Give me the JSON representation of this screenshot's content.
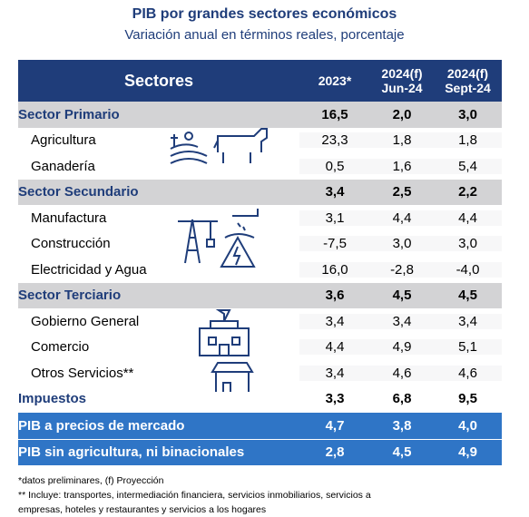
{
  "header": {
    "title": "PIB por grandes sectores económicos",
    "subtitle": "Variación anual en términos reales, porcentaje"
  },
  "table": {
    "columns": [
      [
        "Sectores"
      ],
      [
        "2023*"
      ],
      [
        "2024(f)",
        "Jun-24"
      ],
      [
        "2024(f)",
        "Sept-24"
      ]
    ],
    "sections": [
      {
        "name": "Sector Primario",
        "values": [
          "16,5",
          "2,0",
          "3,0"
        ],
        "rows": [
          [
            "Agricultura",
            "23,3",
            "1,8",
            "1,8"
          ],
          [
            "Ganadería",
            "0,5",
            "1,6",
            "5,4"
          ]
        ]
      },
      {
        "name": "Sector Secundario",
        "values": [
          "3,4",
          "2,5",
          "2,2"
        ],
        "rows": [
          [
            "Manufactura",
            "3,1",
            "4,4",
            "4,4"
          ],
          [
            "Construcción",
            "-7,5",
            "3,0",
            "3,0"
          ],
          [
            "Electricidad y Agua",
            "16,0",
            "-2,8",
            "-4,0"
          ]
        ]
      },
      {
        "name": "Sector Terciario",
        "values": [
          "3,6",
          "4,5",
          "4,5"
        ],
        "rows": [
          [
            "Gobierno General",
            "3,4",
            "3,4",
            "3,4"
          ],
          [
            "Comercio",
            "4,4",
            "4,9",
            "5,1"
          ],
          [
            "Otros Servicios**",
            "3,4",
            "4,6",
            "4,6"
          ]
        ]
      }
    ],
    "summary_rows": [
      [
        "Impuestos",
        "3,3",
        "6,8",
        "9,5"
      ]
    ],
    "total_rows": [
      [
        "PIB a precios de mercado",
        "4,7",
        "3,8",
        "4,0"
      ],
      [
        "PIB sin agricultura, ni binacionales",
        "2,8",
        "4,5",
        "4,9"
      ]
    ]
  },
  "footnotes": [
    "*datos preliminares, (f) Proyección",
    "** Incluye: transportes, intermediación financiera, servicios inmobiliarios, servicios a empresas, hoteles y restaurantes y servicios a los hogares"
  ]
}
